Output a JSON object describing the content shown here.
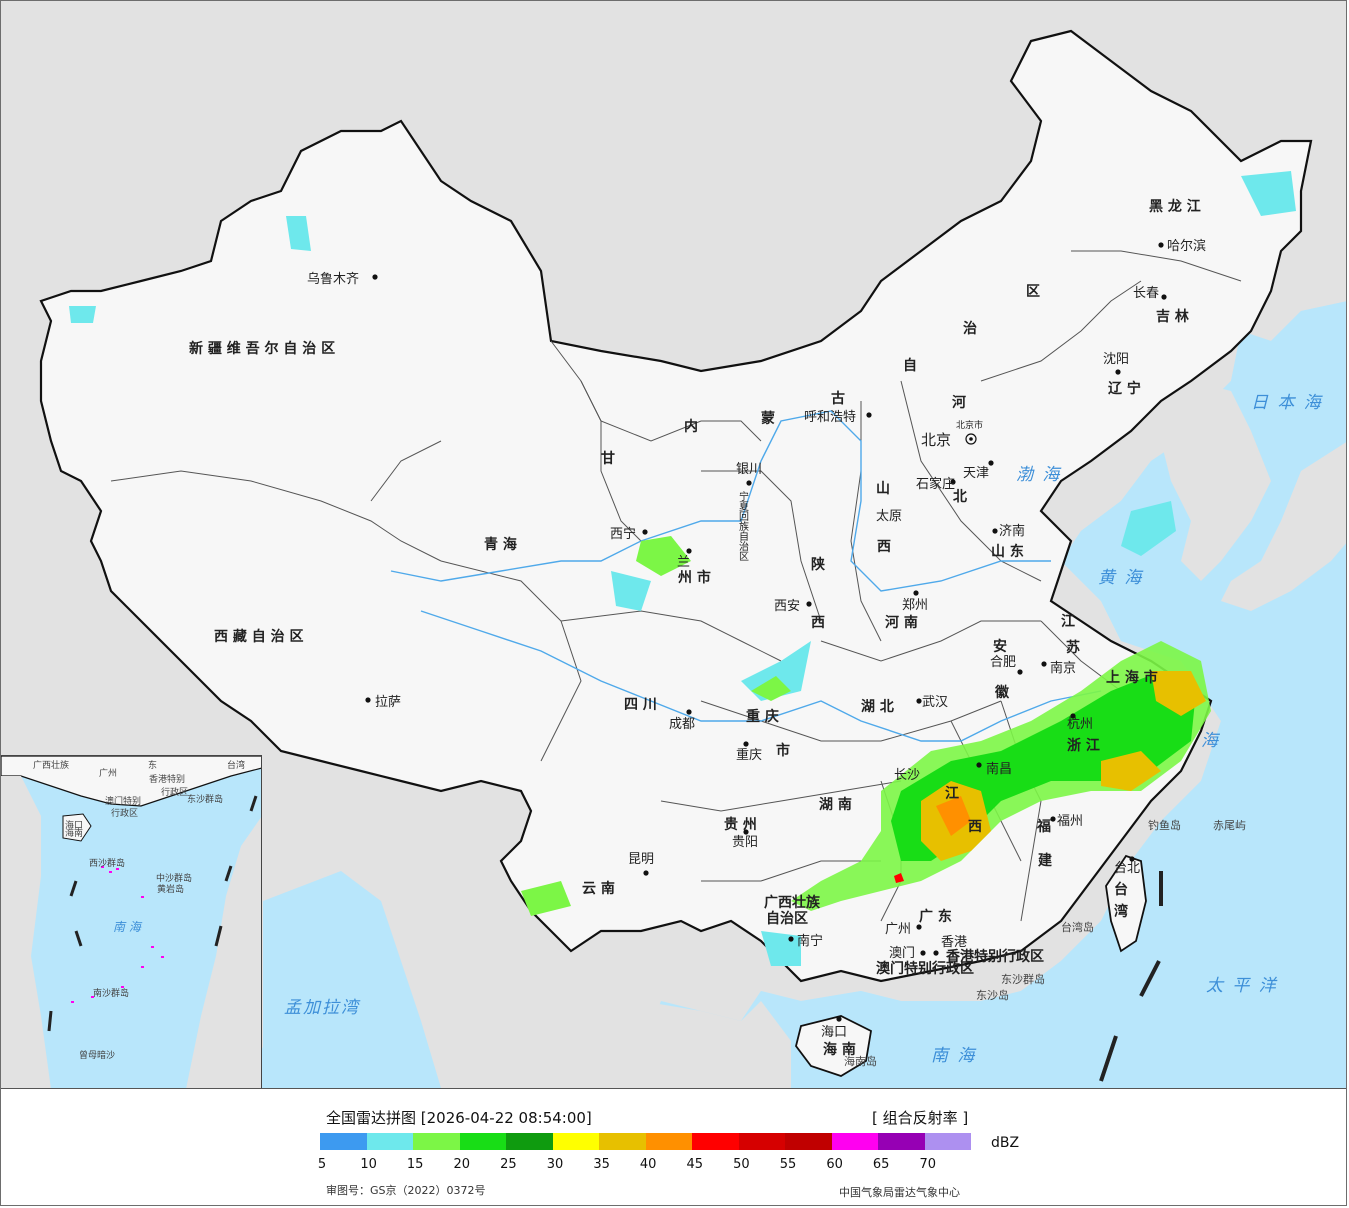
{
  "provinces": [
    {
      "id": "xinjiang",
      "text": "新 疆 维 吾 尔 自 治 区"
    },
    {
      "id": "xizang",
      "text": "西 藏 自 治 区"
    },
    {
      "id": "qinghai",
      "text": "青 海"
    },
    {
      "id": "gansu",
      "text": "甘"
    },
    {
      "id": "sichuan",
      "text": "四 川"
    },
    {
      "id": "yunnan",
      "text": "云 南"
    },
    {
      "id": "guizhou",
      "text": "贵 州"
    },
    {
      "id": "guangxi-1",
      "text": "广西壮族"
    },
    {
      "id": "guangxi-2",
      "text": "自治区"
    },
    {
      "id": "guangdong",
      "text": "广 东"
    },
    {
      "id": "hainan",
      "text": "海 南"
    },
    {
      "id": "hunan",
      "text": "湖 南"
    },
    {
      "id": "hubei",
      "text": "湖 北"
    },
    {
      "id": "henan",
      "text": "河 南"
    },
    {
      "id": "shaanxi",
      "text": "陕"
    },
    {
      "id": "shaanxi-2",
      "text": "西"
    },
    {
      "id": "shanxi",
      "text": "山"
    },
    {
      "id": "shanxi-2",
      "text": "西"
    },
    {
      "id": "neimenggu-1",
      "text": "内"
    },
    {
      "id": "neimenggu-2",
      "text": "蒙"
    },
    {
      "id": "neimenggu-3",
      "text": "古"
    },
    {
      "id": "neimenggu-4",
      "text": "自"
    },
    {
      "id": "neimenggu-5",
      "text": "治"
    },
    {
      "id": "neimenggu-6",
      "text": "区"
    },
    {
      "id": "heilongjiang",
      "text": "黑 龙 江"
    },
    {
      "id": "jilin",
      "text": "吉 林"
    },
    {
      "id": "liaoning",
      "text": "辽 宁"
    },
    {
      "id": "hebei-1",
      "text": "河"
    },
    {
      "id": "hebei-2",
      "text": "北"
    },
    {
      "id": "shandong",
      "text": "山 东"
    },
    {
      "id": "jiangsu",
      "text": "江"
    },
    {
      "id": "jiangsu-2",
      "text": "苏"
    },
    {
      "id": "anhui",
      "text": "安"
    },
    {
      "id": "anhui-2",
      "text": "徽"
    },
    {
      "id": "zhejiang",
      "text": "浙 江"
    },
    {
      "id": "jiangxi",
      "text": "江"
    },
    {
      "id": "jiangxi-2",
      "text": "西"
    },
    {
      "id": "fujian",
      "text": "福"
    },
    {
      "id": "fujian-2",
      "text": "建"
    },
    {
      "id": "taiwan",
      "text": "台"
    },
    {
      "id": "taiwan-2",
      "text": "湾"
    },
    {
      "id": "chongqing",
      "text": "重 庆"
    },
    {
      "id": "chongqing-2",
      "text": "市"
    },
    {
      "id": "shanghai",
      "text": "上 海 市"
    },
    {
      "id": "ningxia",
      "text": "宁夏回族自治区"
    },
    {
      "id": "lanzhou-shi",
      "text": "州 市"
    },
    {
      "id": "hk-sar",
      "text": "香港特别行政区"
    },
    {
      "id": "macau-sar",
      "text": "澳门特别行政区"
    }
  ],
  "cities": [
    {
      "id": "urumqi",
      "text": "乌鲁木齐"
    },
    {
      "id": "lhasa",
      "text": "拉萨"
    },
    {
      "id": "xining",
      "text": "西宁"
    },
    {
      "id": "lanzhou",
      "text": "兰"
    },
    {
      "id": "yinchuan",
      "text": "银川"
    },
    {
      "id": "hohhot",
      "text": "呼和浩特"
    },
    {
      "id": "beijing",
      "text": "北京"
    },
    {
      "id": "beijing-shi",
      "text": "北京市"
    },
    {
      "id": "tianjin",
      "text": "天津"
    },
    {
      "id": "shijiazhuang",
      "text": "石家庄"
    },
    {
      "id": "taiyuan",
      "text": "太原"
    },
    {
      "id": "jinan",
      "text": "济南"
    },
    {
      "id": "zhengzhou",
      "text": "郑州"
    },
    {
      "id": "xian",
      "text": "西安"
    },
    {
      "id": "chengdu",
      "text": "成都"
    },
    {
      "id": "chongqing-city",
      "text": "重庆"
    },
    {
      "id": "guiyang",
      "text": "贵阳"
    },
    {
      "id": "kunming",
      "text": "昆明"
    },
    {
      "id": "nanning",
      "text": "南宁"
    },
    {
      "id": "guangzhou",
      "text": "广州"
    },
    {
      "id": "macau",
      "text": "澳门"
    },
    {
      "id": "hongkong",
      "text": "香港"
    },
    {
      "id": "haikou",
      "text": "海口"
    },
    {
      "id": "wuhan",
      "text": "武汉"
    },
    {
      "id": "changsha",
      "text": "长沙"
    },
    {
      "id": "nanchang",
      "text": "南昌"
    },
    {
      "id": "hefei",
      "text": "合肥"
    },
    {
      "id": "nanjing",
      "text": "南京"
    },
    {
      "id": "hangzhou",
      "text": "杭州"
    },
    {
      "id": "fuzhou",
      "text": "福州"
    },
    {
      "id": "taipei",
      "text": "台北"
    },
    {
      "id": "shenyang",
      "text": "沈阳"
    },
    {
      "id": "changchun",
      "text": "长春"
    },
    {
      "id": "harbin",
      "text": "哈尔滨"
    }
  ],
  "seas": [
    {
      "id": "bohai",
      "text": "渤 海"
    },
    {
      "id": "huanghai",
      "text": "黄 海"
    },
    {
      "id": "donghai",
      "text": "海"
    },
    {
      "id": "nanhai",
      "text": "南   海"
    },
    {
      "id": "taipingyang",
      "text": "太 平 洋"
    },
    {
      "id": "ribenhai",
      "text": "日 本 海"
    },
    {
      "id": "mengjiala",
      "text": "孟加拉湾"
    }
  ],
  "islands": [
    {
      "id": "diaoyu",
      "text": "钓鱼岛"
    },
    {
      "id": "chiwei",
      "text": "赤尾屿"
    },
    {
      "id": "dongsha-1",
      "text": "东沙群岛"
    },
    {
      "id": "dongsha-2",
      "text": "东沙岛"
    },
    {
      "id": "taiwan-island",
      "text": "台湾岛"
    },
    {
      "id": "hainan-island",
      "text": "海南岛"
    }
  ],
  "inset": {
    "labels": [
      {
        "id": "i-guangxi",
        "text": "广西壮族"
      },
      {
        "id": "i-guangzhou",
        "text": "广州"
      },
      {
        "id": "i-dong",
        "text": "东"
      },
      {
        "id": "i-hk",
        "text": "香港特别"
      },
      {
        "id": "i-hk2",
        "text": "行政区"
      },
      {
        "id": "i-macau",
        "text": "澳门特别"
      },
      {
        "id": "i-macau2",
        "text": "行政区"
      },
      {
        "id": "i-dongsha",
        "text": "东沙群岛"
      },
      {
        "id": "i-haikou",
        "text": "海口"
      },
      {
        "id": "i-hainan",
        "text": "海南"
      },
      {
        "id": "i-xisha",
        "text": "西沙群岛"
      },
      {
        "id": "i-zhongsha",
        "text": "中沙群岛"
      },
      {
        "id": "i-huangyan",
        "text": "黄岩岛"
      },
      {
        "id": "i-nanhai",
        "text": "南 海"
      },
      {
        "id": "i-nansha",
        "text": "南沙群岛"
      },
      {
        "id": "i-zengmu",
        "text": "曾母暗沙"
      },
      {
        "id": "i-taiwan",
        "text": "台湾"
      }
    ]
  },
  "legend": {
    "title": "全国雷达拼图 [2026-04-22 08:54:00]",
    "product": "[ 组合反射率 ]",
    "unit": "dBZ",
    "colors": [
      "#3d9af0",
      "#6ee8ec",
      "#7cf646",
      "#18dd16",
      "#0f9b0f",
      "#ffff00",
      "#e7c000",
      "#ff9000",
      "#ff0000",
      "#d60000",
      "#c00000",
      "#ff00f0",
      "#9600b4",
      "#ad90f0"
    ],
    "ticks": [
      "5",
      "10",
      "15",
      "20",
      "25",
      "30",
      "35",
      "40",
      "45",
      "50",
      "55",
      "60",
      "65",
      "70"
    ],
    "map_approval": "审图号：GS京（2022）0372号",
    "source": "中国气象局雷达气象中心"
  }
}
